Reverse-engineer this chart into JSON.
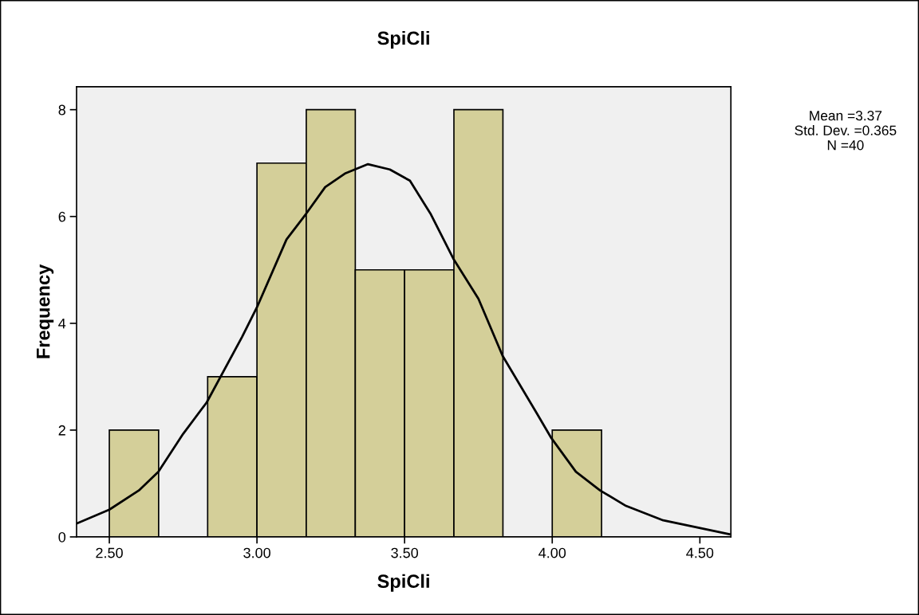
{
  "chart_data": {
    "type": "histogram",
    "title": "SpiCli",
    "xlabel": "SpiCli",
    "ylabel": "Frequency",
    "bins": [
      2.5,
      2.667,
      2.833,
      3.0,
      3.167,
      3.333,
      3.5,
      3.667,
      3.833,
      4.0,
      4.167
    ],
    "series": [
      {
        "type": "histogram",
        "color": "#d4cf99",
        "values": [
          2,
          0,
          3,
          7,
          8,
          5,
          5,
          8,
          0,
          2
        ]
      },
      {
        "type": "line",
        "color": "#000000",
        "x": [
          2.389,
          2.5,
          2.6,
          2.666,
          2.75,
          2.83,
          2.95,
          3.0,
          3.1,
          3.165,
          3.231,
          3.3,
          3.376,
          3.45,
          3.518,
          3.589,
          3.665,
          3.75,
          3.832,
          3.946,
          3.997,
          4.08,
          4.162,
          4.25,
          4.376,
          4.6
        ],
        "values": [
          0.25,
          0.51,
          0.87,
          1.22,
          1.93,
          2.52,
          3.75,
          4.3,
          5.57,
          6.04,
          6.55,
          6.81,
          6.98,
          6.88,
          6.67,
          6.04,
          5.21,
          4.46,
          3.39,
          2.33,
          1.85,
          1.22,
          0.87,
          0.58,
          0.31,
          0.05
        ]
      }
    ],
    "xlim": [
      2.389,
      4.605
    ],
    "ylim": [
      0,
      8.43
    ],
    "xticks": [
      {
        "value": 2.5,
        "label": "2.50"
      },
      {
        "value": 3.0,
        "label": "3.00"
      },
      {
        "value": 3.5,
        "label": "3.50"
      },
      {
        "value": 4.0,
        "label": "4.00"
      },
      {
        "value": 4.5,
        "label": "4.50"
      }
    ],
    "yticks": [
      0,
      2,
      4,
      6,
      8
    ],
    "annotations": [
      "Mean =3.37",
      "Std. Dev. =0.365",
      "N =40"
    ],
    "grid": false,
    "legend": false
  }
}
